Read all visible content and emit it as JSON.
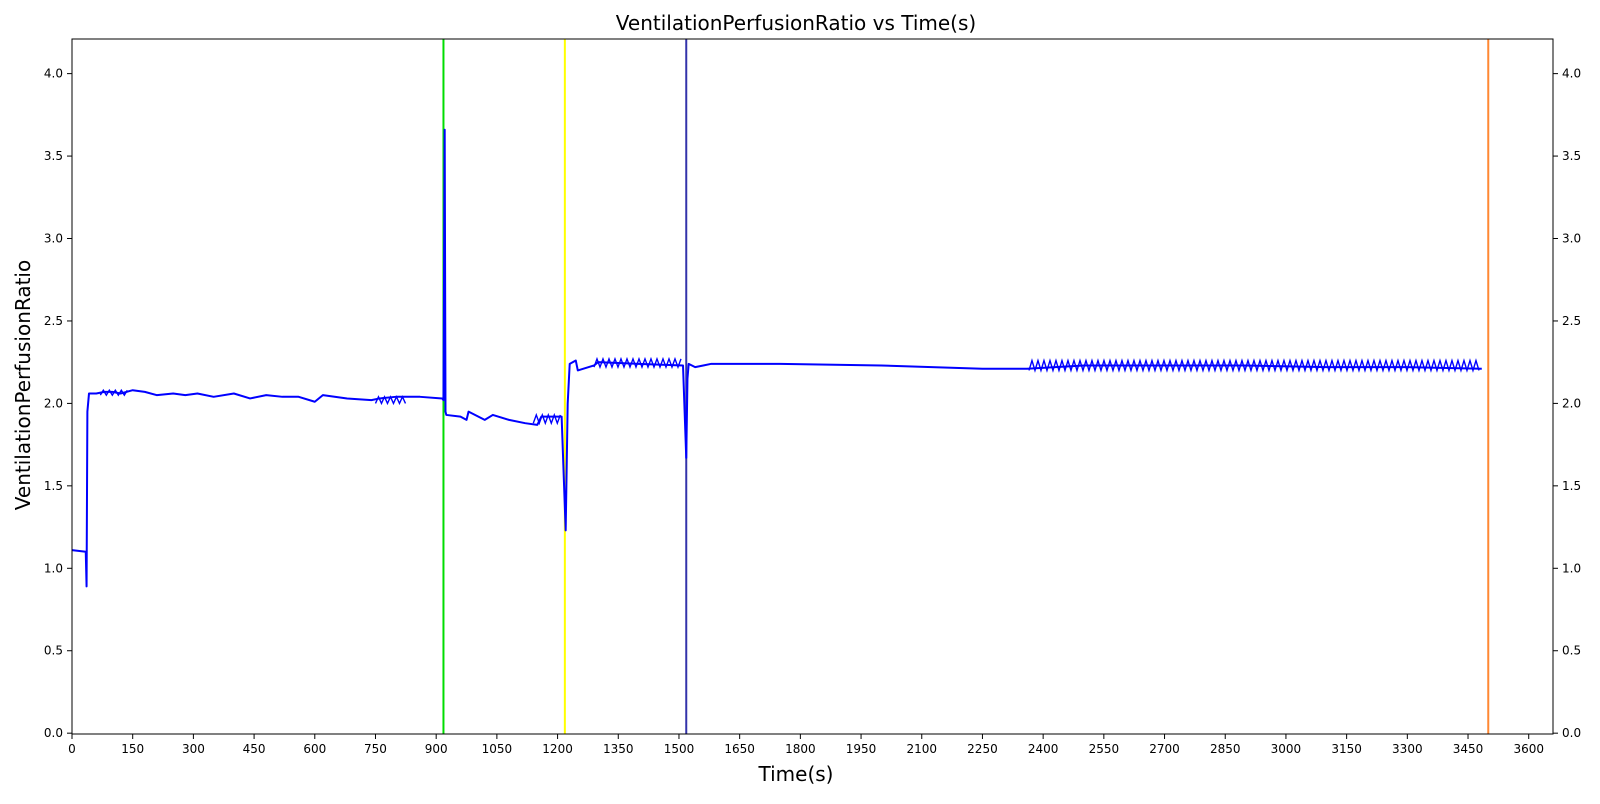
{
  "chart_data": {
    "type": "line",
    "title": "VentilationPerfusionRatio vs Time(s)",
    "xlabel": "Time(s)",
    "ylabel": "VentilationPerfusionRatio",
    "xlim": [
      0,
      3660
    ],
    "ylim": [
      -0.005,
      4.21
    ],
    "x_ticks": [
      0,
      150,
      300,
      450,
      600,
      750,
      900,
      1050,
      1200,
      1350,
      1500,
      1650,
      1800,
      1950,
      2100,
      2250,
      2400,
      2550,
      2700,
      2850,
      3000,
      3150,
      3300,
      3450,
      3600
    ],
    "y_ticks": [
      "0.0",
      "0.5",
      "1.0",
      "1.5",
      "2.0",
      "2.5",
      "3.0",
      "3.5",
      "4.0"
    ],
    "y_ticks_right": true,
    "grid": false,
    "legend": "none",
    "line_color": "#0000ff",
    "series": [
      {
        "values": [
          [
            0,
            1.11
          ],
          [
            34,
            1.1
          ],
          [
            36,
            0.89
          ],
          [
            38,
            1.95
          ],
          [
            42,
            2.06
          ],
          [
            60,
            2.06
          ],
          [
            80,
            2.07
          ],
          [
            100,
            2.07
          ],
          [
            120,
            2.06
          ],
          [
            150,
            2.08
          ],
          [
            180,
            2.07
          ],
          [
            210,
            2.05
          ],
          [
            250,
            2.06
          ],
          [
            280,
            2.05
          ],
          [
            310,
            2.06
          ],
          [
            350,
            2.04
          ],
          [
            400,
            2.06
          ],
          [
            440,
            2.03
          ],
          [
            480,
            2.05
          ],
          [
            520,
            2.04
          ],
          [
            560,
            2.04
          ],
          [
            600,
            2.01
          ],
          [
            620,
            2.05
          ],
          [
            680,
            2.03
          ],
          [
            740,
            2.02
          ],
          [
            760,
            2.03
          ],
          [
            800,
            2.04
          ],
          [
            860,
            2.04
          ],
          [
            915,
            2.03
          ],
          [
            918,
            2.02
          ],
          [
            921,
            3.66
          ],
          [
            923,
            1.95
          ],
          [
            925,
            1.93
          ],
          [
            960,
            1.92
          ],
          [
            975,
            1.9
          ],
          [
            980,
            1.95
          ],
          [
            1020,
            1.9
          ],
          [
            1040,
            1.93
          ],
          [
            1080,
            1.9
          ],
          [
            1120,
            1.88
          ],
          [
            1150,
            1.87
          ],
          [
            1160,
            1.92
          ],
          [
            1210,
            1.92
          ],
          [
            1220,
            1.23
          ],
          [
            1225,
            2.0
          ],
          [
            1230,
            2.24
          ],
          [
            1245,
            2.26
          ],
          [
            1250,
            2.2
          ],
          [
            1290,
            2.23
          ],
          [
            1300,
            2.25
          ],
          [
            1400,
            2.24
          ],
          [
            1510,
            2.23
          ],
          [
            1518,
            1.67
          ],
          [
            1521,
            2.15
          ],
          [
            1524,
            2.24
          ],
          [
            1540,
            2.22
          ],
          [
            1560,
            2.23
          ],
          [
            1580,
            2.24
          ],
          [
            1750,
            2.24
          ],
          [
            2000,
            2.23
          ],
          [
            2250,
            2.21
          ],
          [
            2360,
            2.21
          ],
          [
            2500,
            2.23
          ],
          [
            2700,
            2.23
          ],
          [
            2900,
            2.23
          ],
          [
            3100,
            2.22
          ],
          [
            3300,
            2.22
          ],
          [
            3484,
            2.21
          ]
        ],
        "oscillations": [
          [
            70,
            140,
            2.05,
            2.08
          ],
          [
            750,
            830,
            2.0,
            2.04
          ],
          [
            1140,
            1210,
            1.88,
            1.93
          ],
          [
            1290,
            1510,
            2.22,
            2.27
          ],
          [
            2365,
            3484,
            2.2,
            2.26
          ]
        ]
      }
    ],
    "markers": [
      {
        "x": 918,
        "color": "#00dd00"
      },
      {
        "x": 1218,
        "color": "#ffff00"
      },
      {
        "x": 1518,
        "color": "#3333aa"
      },
      {
        "x": 3500,
        "color": "#ff8833"
      }
    ]
  }
}
